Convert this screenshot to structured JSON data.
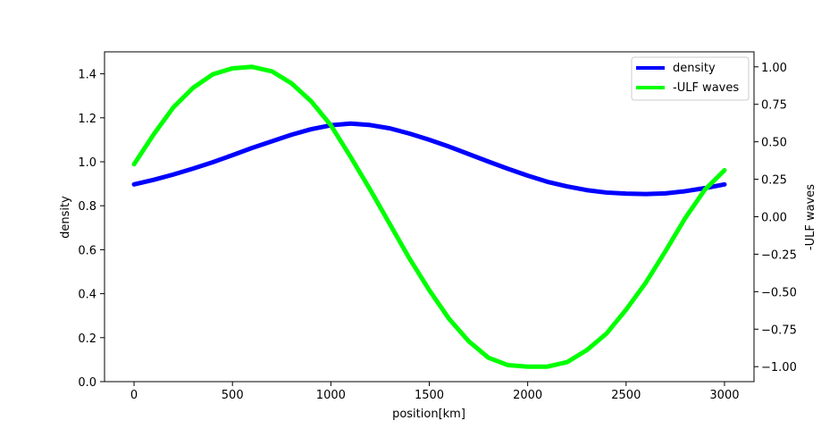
{
  "chart_data": {
    "type": "line",
    "title": "",
    "xlabel": "position[km]",
    "ylabel_left": "density",
    "ylabel_right": "-ULF waves",
    "xlim": [
      -150,
      3150
    ],
    "ylim_left": [
      0.0,
      1.5
    ],
    "ylim_right": [
      -1.1,
      1.1
    ],
    "x_ticks": [
      0,
      500,
      1000,
      1500,
      2000,
      2500,
      3000
    ],
    "y_ticks_left": [
      "0.0",
      "0.2",
      "0.4",
      "0.6",
      "0.8",
      "1.0",
      "1.2",
      "1.4"
    ],
    "y_ticks_right": [
      "1.00",
      "0.75",
      "0.50",
      "0.25",
      "0.00",
      "−0.25",
      "−0.50",
      "−0.75",
      "−1.00"
    ],
    "grid": false,
    "legend_position": "top-right",
    "x": [
      0,
      100,
      200,
      300,
      400,
      500,
      600,
      700,
      800,
      900,
      1000,
      1100,
      1200,
      1300,
      1400,
      1500,
      1600,
      1700,
      1800,
      1900,
      2000,
      2100,
      2200,
      2300,
      2400,
      2500,
      2600,
      2700,
      2800,
      2900,
      3000
    ],
    "series": [
      {
        "name": "density",
        "color": "#0000ff",
        "axis": "left",
        "values": [
          0.897,
          0.918,
          0.942,
          0.969,
          0.998,
          1.03,
          1.063,
          1.093,
          1.123,
          1.148,
          1.166,
          1.174,
          1.167,
          1.152,
          1.128,
          1.1,
          1.069,
          1.035,
          1.001,
          0.968,
          0.937,
          0.909,
          0.888,
          0.871,
          0.86,
          0.855,
          0.853,
          0.856,
          0.866,
          0.88,
          0.897
        ]
      },
      {
        "name": "-ULF waves",
        "color": "#00ff00",
        "axis": "right",
        "values": [
          0.35,
          0.55,
          0.73,
          0.86,
          0.95,
          0.99,
          1.0,
          0.97,
          0.89,
          0.77,
          0.61,
          0.4,
          0.18,
          -0.05,
          -0.28,
          -0.49,
          -0.68,
          -0.83,
          -0.94,
          -0.99,
          -1.0,
          -1.0,
          -0.97,
          -0.89,
          -0.78,
          -0.62,
          -0.44,
          -0.23,
          -0.01,
          0.18,
          0.31
        ]
      }
    ]
  }
}
